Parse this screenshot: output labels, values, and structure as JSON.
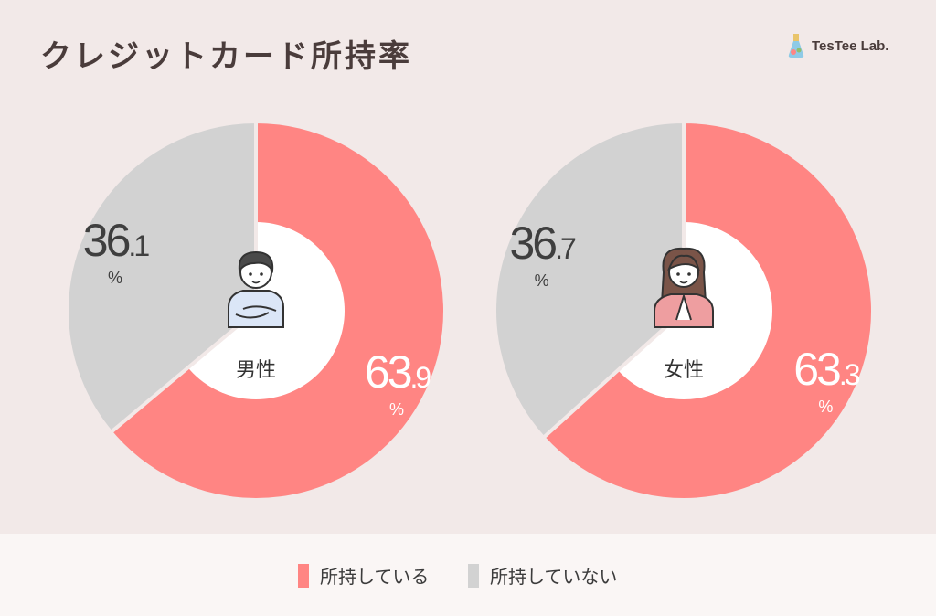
{
  "title": "クレジットカード所持率",
  "brand": {
    "name": "TesTee Lab.",
    "icon": "flask-logo-icon"
  },
  "colors": {
    "holding": "#ff8583",
    "not_holding": "#d2d2d2",
    "text": "#4a3c3b",
    "label_light": "#ffffff",
    "label_dark": "#3f3f3f"
  },
  "chart_data": [
    {
      "type": "pie",
      "center_label": "男性",
      "icon": "male-person-icon",
      "categories": [
        "所持している",
        "所持していない"
      ],
      "values": [
        63.9,
        36.1
      ],
      "unit": "%"
    },
    {
      "type": "pie",
      "center_label": "女性",
      "icon": "female-person-icon",
      "categories": [
        "所持している",
        "所持していない"
      ],
      "values": [
        63.3,
        36.7
      ],
      "unit": "%"
    }
  ],
  "legend": [
    {
      "label": "所持している",
      "color": "#ff8583"
    },
    {
      "label": "所持していない",
      "color": "#d2d2d2"
    }
  ]
}
